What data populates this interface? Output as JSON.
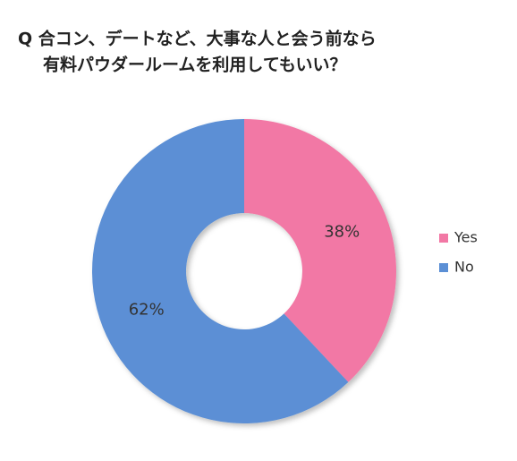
{
  "chart_data": {
    "type": "donut",
    "title": [
      "Q 合コン、デートなど、大事な人と会う前なら",
      "有料パウダールームを利用してもいい？"
    ],
    "categories": [
      "Yes",
      "No"
    ],
    "values": [
      38,
      62
    ],
    "value_labels": [
      "38%",
      "62%"
    ],
    "colors": [
      "#f278a5",
      "#5b8fd5"
    ],
    "legend": "right"
  }
}
